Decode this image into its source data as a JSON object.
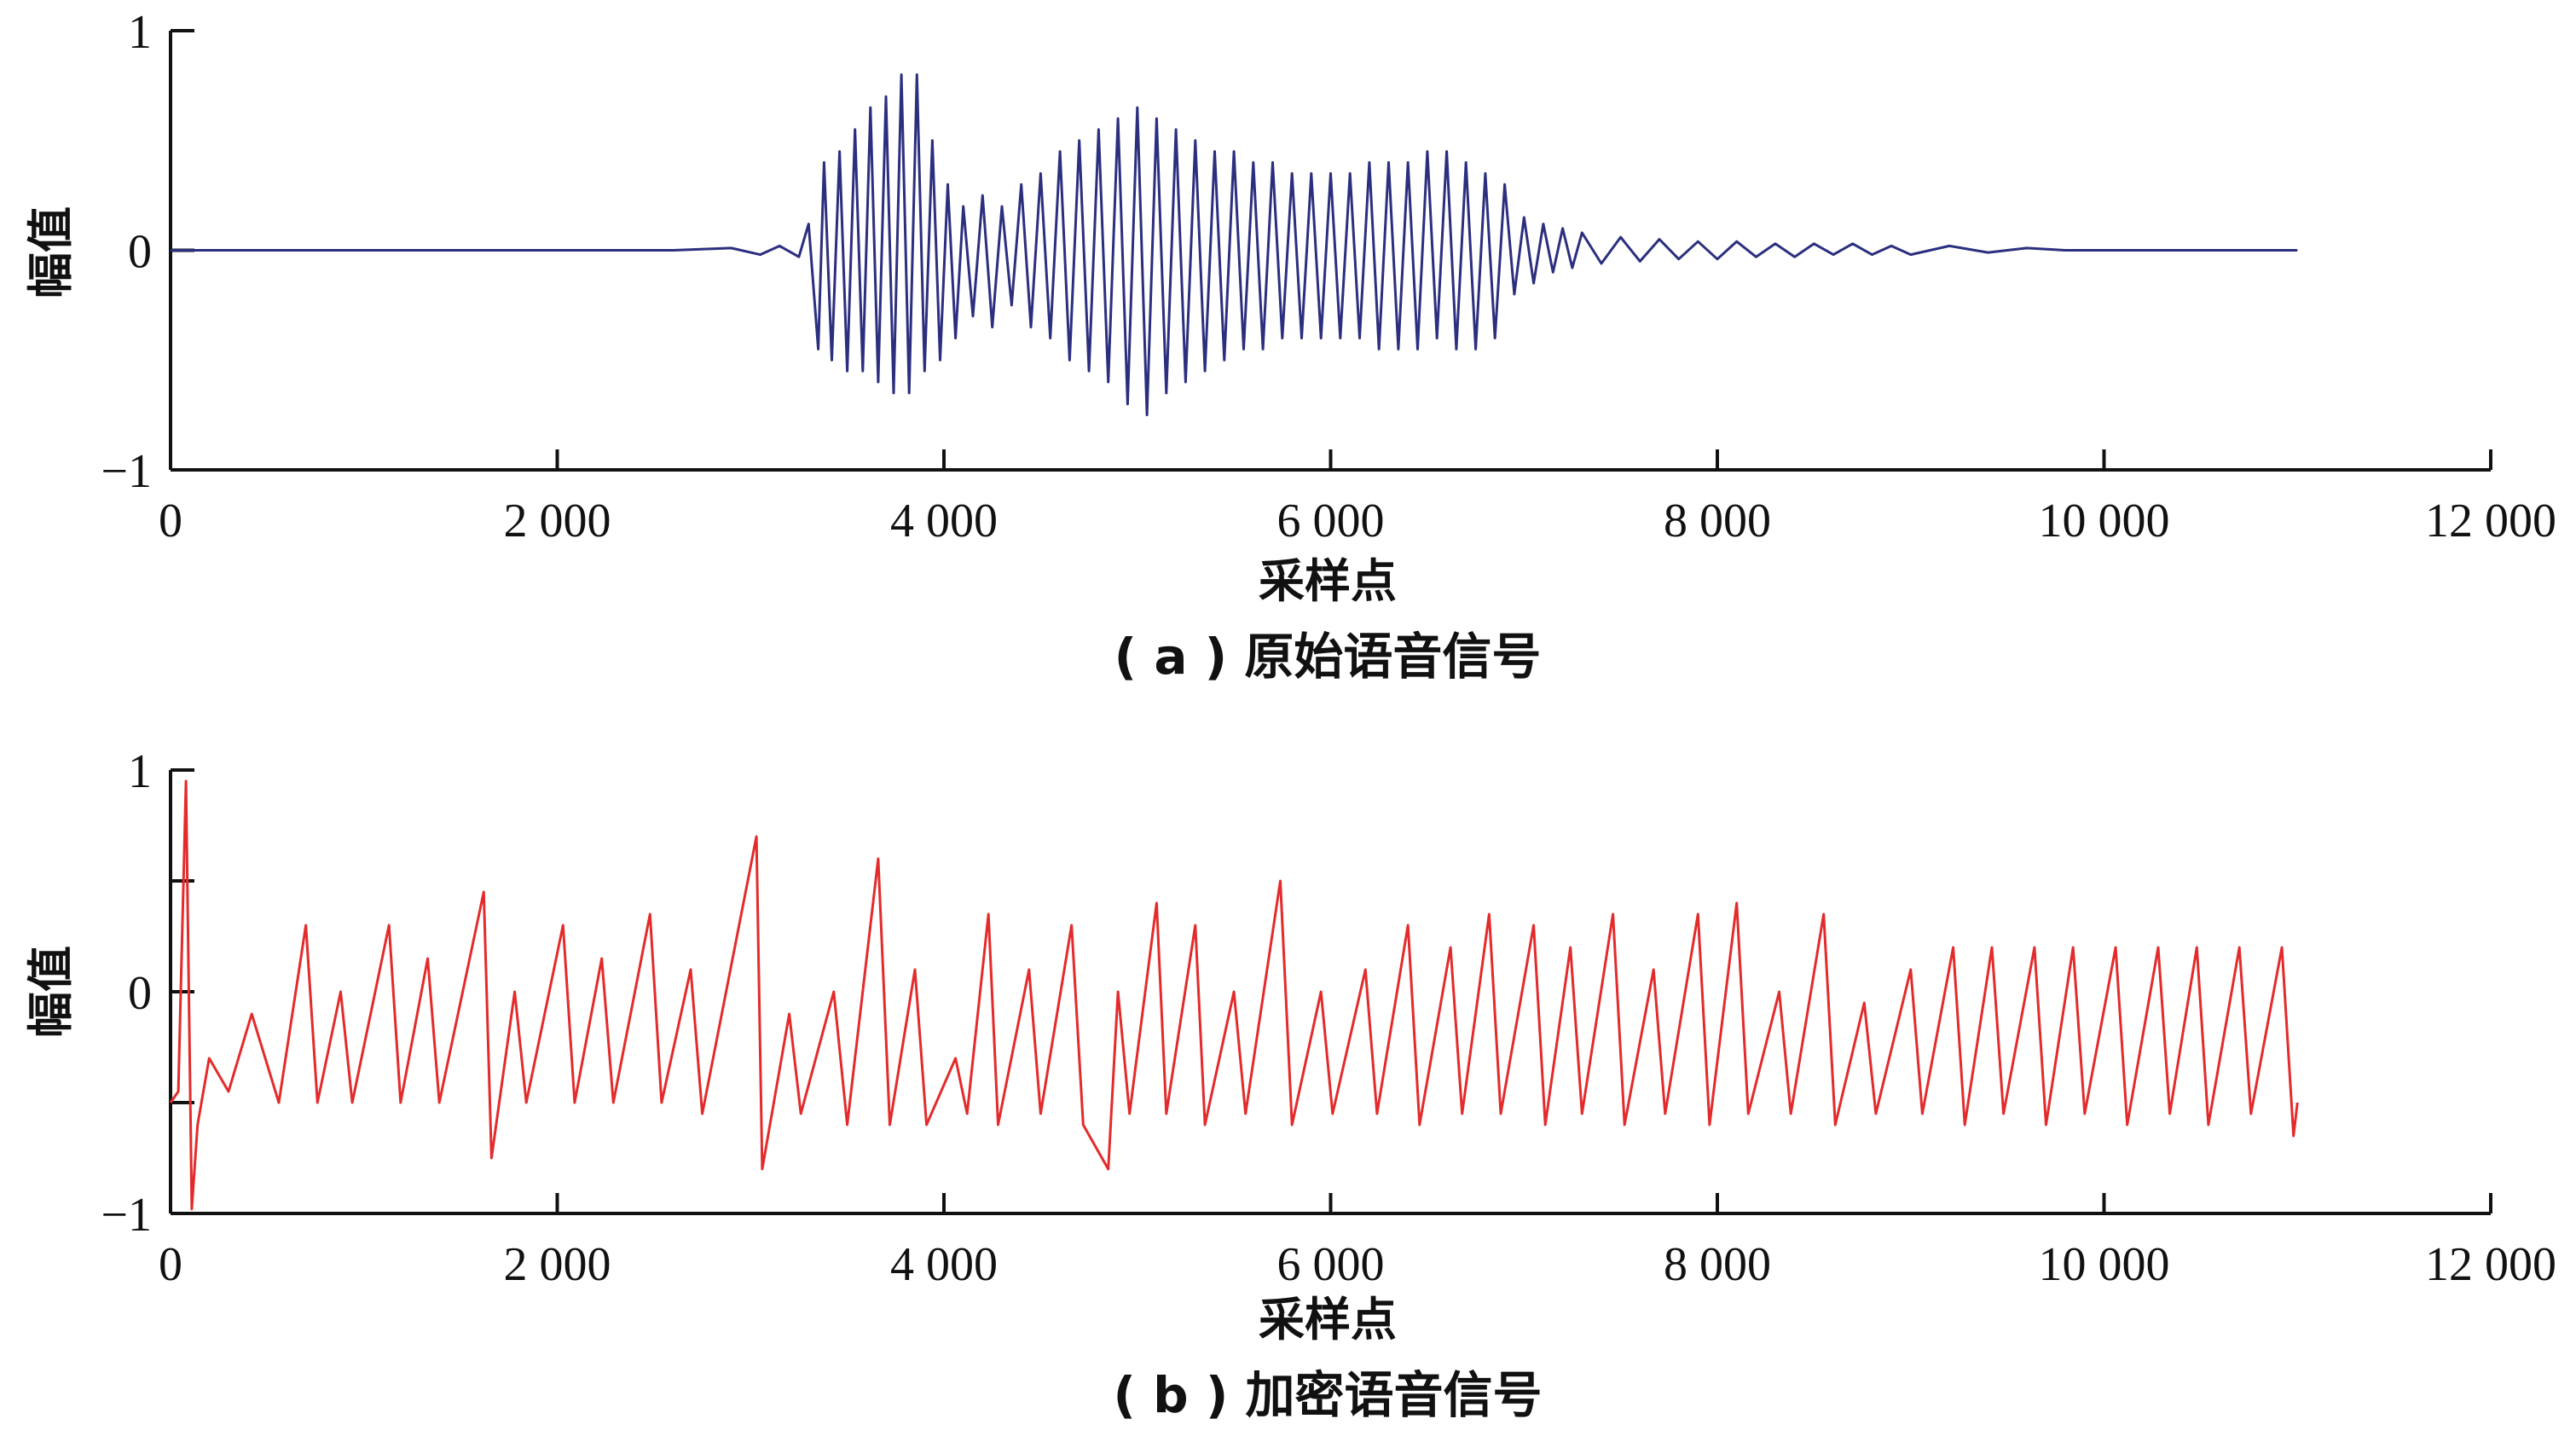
{
  "chart_data": [
    {
      "type": "line",
      "caption": "( a ) 原始语音信号",
      "xlabel": "采样点",
      "ylabel": "幅值",
      "xlim": [
        0,
        12000
      ],
      "ylim": [
        -1,
        1
      ],
      "xticks": [
        0,
        2000,
        4000,
        6000,
        8000,
        10000,
        12000
      ],
      "xtick_labels": [
        "0",
        "2 000",
        "4 000",
        "6 000",
        "8 000",
        "10 000",
        "12 000"
      ],
      "yticks": [
        -1,
        0,
        1
      ],
      "ytick_labels": [
        "−1",
        "0",
        "1"
      ],
      "grid": false,
      "series": [
        {
          "color": "#2b2f7e",
          "points": [
            [
              0,
              0
            ],
            [
              2600,
              0
            ],
            [
              2900,
              0.01
            ],
            [
              3050,
              -0.02
            ],
            [
              3150,
              0.02
            ],
            [
              3250,
              -0.03
            ],
            [
              3300,
              0.12
            ],
            [
              3350,
              -0.45
            ],
            [
              3380,
              0.4
            ],
            [
              3420,
              -0.5
            ],
            [
              3460,
              0.45
            ],
            [
              3500,
              -0.55
            ],
            [
              3540,
              0.55
            ],
            [
              3580,
              -0.55
            ],
            [
              3620,
              0.65
            ],
            [
              3660,
              -0.6
            ],
            [
              3700,
              0.7
            ],
            [
              3740,
              -0.65
            ],
            [
              3780,
              0.8
            ],
            [
              3820,
              -0.65
            ],
            [
              3860,
              0.8
            ],
            [
              3900,
              -0.55
            ],
            [
              3940,
              0.5
            ],
            [
              3980,
              -0.5
            ],
            [
              4020,
              0.3
            ],
            [
              4060,
              -0.4
            ],
            [
              4100,
              0.2
            ],
            [
              4150,
              -0.3
            ],
            [
              4200,
              0.25
            ],
            [
              4250,
              -0.35
            ],
            [
              4300,
              0.2
            ],
            [
              4350,
              -0.25
            ],
            [
              4400,
              0.3
            ],
            [
              4450,
              -0.35
            ],
            [
              4500,
              0.35
            ],
            [
              4550,
              -0.4
            ],
            [
              4600,
              0.45
            ],
            [
              4650,
              -0.5
            ],
            [
              4700,
              0.5
            ],
            [
              4750,
              -0.55
            ],
            [
              4800,
              0.55
            ],
            [
              4850,
              -0.6
            ],
            [
              4900,
              0.6
            ],
            [
              4950,
              -0.7
            ],
            [
              5000,
              0.65
            ],
            [
              5050,
              -0.75
            ],
            [
              5100,
              0.6
            ],
            [
              5150,
              -0.65
            ],
            [
              5200,
              0.55
            ],
            [
              5250,
              -0.6
            ],
            [
              5300,
              0.5
            ],
            [
              5350,
              -0.55
            ],
            [
              5400,
              0.45
            ],
            [
              5450,
              -0.5
            ],
            [
              5500,
              0.45
            ],
            [
              5550,
              -0.45
            ],
            [
              5600,
              0.4
            ],
            [
              5650,
              -0.45
            ],
            [
              5700,
              0.4
            ],
            [
              5750,
              -0.4
            ],
            [
              5800,
              0.35
            ],
            [
              5850,
              -0.4
            ],
            [
              5900,
              0.35
            ],
            [
              5950,
              -0.4
            ],
            [
              6000,
              0.35
            ],
            [
              6050,
              -0.4
            ],
            [
              6100,
              0.35
            ],
            [
              6150,
              -0.4
            ],
            [
              6200,
              0.4
            ],
            [
              6250,
              -0.45
            ],
            [
              6300,
              0.4
            ],
            [
              6350,
              -0.45
            ],
            [
              6400,
              0.4
            ],
            [
              6450,
              -0.45
            ],
            [
              6500,
              0.45
            ],
            [
              6550,
              -0.4
            ],
            [
              6600,
              0.45
            ],
            [
              6650,
              -0.45
            ],
            [
              6700,
              0.4
            ],
            [
              6750,
              -0.45
            ],
            [
              6800,
              0.35
            ],
            [
              6850,
              -0.4
            ],
            [
              6900,
              0.3
            ],
            [
              6950,
              -0.2
            ],
            [
              7000,
              0.15
            ],
            [
              7050,
              -0.15
            ],
            [
              7100,
              0.12
            ],
            [
              7150,
              -0.1
            ],
            [
              7200,
              0.1
            ],
            [
              7250,
              -0.08
            ],
            [
              7300,
              0.08
            ],
            [
              7400,
              -0.06
            ],
            [
              7500,
              0.06
            ],
            [
              7600,
              -0.05
            ],
            [
              7700,
              0.05
            ],
            [
              7800,
              -0.04
            ],
            [
              7900,
              0.04
            ],
            [
              8000,
              -0.04
            ],
            [
              8100,
              0.04
            ],
            [
              8200,
              -0.03
            ],
            [
              8300,
              0.03
            ],
            [
              8400,
              -0.03
            ],
            [
              8500,
              0.03
            ],
            [
              8600,
              -0.02
            ],
            [
              8700,
              0.03
            ],
            [
              8800,
              -0.02
            ],
            [
              8900,
              0.02
            ],
            [
              9000,
              -0.02
            ],
            [
              9200,
              0.02
            ],
            [
              9400,
              -0.01
            ],
            [
              9600,
              0.01
            ],
            [
              9800,
              0
            ],
            [
              11000,
              0
            ]
          ]
        }
      ]
    },
    {
      "type": "line",
      "caption": "( b ) 加密语音信号",
      "xlabel": "采样点",
      "ylabel": "幅值",
      "xlim": [
        0,
        12000
      ],
      "ylim": [
        -1,
        1
      ],
      "xticks": [
        0,
        2000,
        4000,
        6000,
        8000,
        10000,
        12000
      ],
      "xtick_labels": [
        "0",
        "2 000",
        "4 000",
        "6 000",
        "8 000",
        "10 000",
        "12 000"
      ],
      "yticks": [
        -1,
        0,
        1
      ],
      "ytick_labels": [
        "−1",
        "0",
        "1"
      ],
      "grid": false,
      "series": [
        {
          "color": "#e32b2b",
          "points": [
            [
              0,
              -0.5
            ],
            [
              40,
              -0.45
            ],
            [
              80,
              0.95
            ],
            [
              110,
              -0.98
            ],
            [
              140,
              -0.6
            ],
            [
              200,
              -0.3
            ],
            [
              300,
              -0.45
            ],
            [
              420,
              -0.1
            ],
            [
              560,
              -0.5
            ],
            [
              700,
              0.3
            ],
            [
              760,
              -0.5
            ],
            [
              880,
              0.0
            ],
            [
              940,
              -0.5
            ],
            [
              1130,
              0.3
            ],
            [
              1190,
              -0.5
            ],
            [
              1330,
              0.15
            ],
            [
              1390,
              -0.5
            ],
            [
              1620,
              0.45
            ],
            [
              1660,
              -0.75
            ],
            [
              1780,
              -0.0
            ],
            [
              1840,
              -0.5
            ],
            [
              2030,
              0.3
            ],
            [
              2090,
              -0.5
            ],
            [
              2230,
              0.15
            ],
            [
              2290,
              -0.5
            ],
            [
              2480,
              0.35
            ],
            [
              2540,
              -0.5
            ],
            [
              2690,
              0.1
            ],
            [
              2750,
              -0.55
            ],
            [
              3030,
              0.7
            ],
            [
              3060,
              -0.8
            ],
            [
              3200,
              -0.1
            ],
            [
              3260,
              -0.55
            ],
            [
              3430,
              0.0
            ],
            [
              3500,
              -0.6
            ],
            [
              3660,
              0.6
            ],
            [
              3720,
              -0.6
            ],
            [
              3850,
              0.1
            ],
            [
              3910,
              -0.6
            ],
            [
              4060,
              -0.3
            ],
            [
              4120,
              -0.55
            ],
            [
              4230,
              0.35
            ],
            [
              4280,
              -0.6
            ],
            [
              4440,
              0.1
            ],
            [
              4500,
              -0.55
            ],
            [
              4660,
              0.3
            ],
            [
              4720,
              -0.6
            ],
            [
              4850,
              -0.8
            ],
            [
              4900,
              0.0
            ],
            [
              4960,
              -0.55
            ],
            [
              5100,
              0.4
            ],
            [
              5150,
              -0.55
            ],
            [
              5300,
              0.3
            ],
            [
              5350,
              -0.6
            ],
            [
              5500,
              0.0
            ],
            [
              5560,
              -0.55
            ],
            [
              5740,
              0.5
            ],
            [
              5800,
              -0.6
            ],
            [
              5950,
              0.0
            ],
            [
              6010,
              -0.55
            ],
            [
              6180,
              0.1
            ],
            [
              6240,
              -0.55
            ],
            [
              6400,
              0.3
            ],
            [
              6460,
              -0.6
            ],
            [
              6620,
              0.2
            ],
            [
              6680,
              -0.55
            ],
            [
              6820,
              0.35
            ],
            [
              6880,
              -0.55
            ],
            [
              7050,
              0.3
            ],
            [
              7110,
              -0.6
            ],
            [
              7240,
              0.2
            ],
            [
              7300,
              -0.55
            ],
            [
              7460,
              0.35
            ],
            [
              7520,
              -0.6
            ],
            [
              7670,
              0.1
            ],
            [
              7730,
              -0.55
            ],
            [
              7900,
              0.35
            ],
            [
              7960,
              -0.6
            ],
            [
              8100,
              0.4
            ],
            [
              8160,
              -0.55
            ],
            [
              8320,
              0.0
            ],
            [
              8380,
              -0.55
            ],
            [
              8550,
              0.35
            ],
            [
              8610,
              -0.6
            ],
            [
              8760,
              -0.05
            ],
            [
              8820,
              -0.55
            ],
            [
              9000,
              0.1
            ],
            [
              9060,
              -0.55
            ],
            [
              9220,
              0.2
            ],
            [
              9280,
              -0.6
            ],
            [
              9420,
              0.2
            ],
            [
              9480,
              -0.55
            ],
            [
              9640,
              0.2
            ],
            [
              9700,
              -0.6
            ],
            [
              9840,
              0.2
            ],
            [
              9900,
              -0.55
            ],
            [
              10060,
              0.2
            ],
            [
              10120,
              -0.6
            ],
            [
              10280,
              0.2
            ],
            [
              10340,
              -0.55
            ],
            [
              10480,
              0.2
            ],
            [
              10540,
              -0.6
            ],
            [
              10700,
              0.2
            ],
            [
              10760,
              -0.55
            ],
            [
              10920,
              0.2
            ],
            [
              10980,
              -0.65
            ],
            [
              11000,
              -0.5
            ]
          ]
        }
      ]
    }
  ]
}
